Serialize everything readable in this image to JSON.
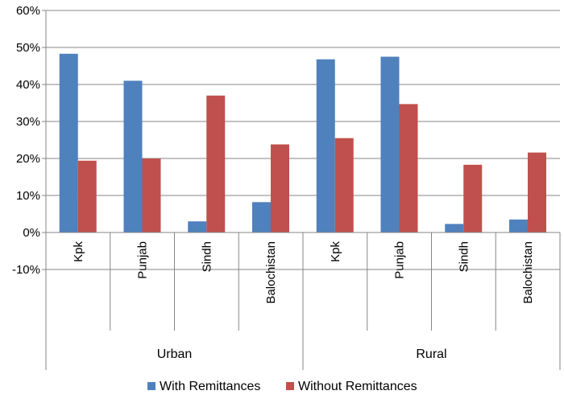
{
  "chart_data": {
    "type": "bar",
    "y_ticks": [
      "60%",
      "50%",
      "40%",
      "30%",
      "20%",
      "10%",
      "0%",
      "-10%"
    ],
    "ylim": [
      -0.1,
      0.6
    ],
    "grid": true,
    "legend_position": "bottom",
    "groups": [
      {
        "name": "Urban",
        "categories": [
          "Kpk",
          "Punjab",
          "Sindh",
          "Balochistan"
        ]
      },
      {
        "name": "Rural",
        "categories": [
          "Kpk",
          "Punjab",
          "Sindh",
          "Balochistan"
        ]
      }
    ],
    "categories": [
      "Kpk",
      "Punjab",
      "Sindh",
      "Balochistan",
      "Kpk",
      "Punjab",
      "Sindh",
      "Balochistan"
    ],
    "series": [
      {
        "name": "With Remittances",
        "color": "#4F81BD",
        "values": [
          0.483,
          0.41,
          0.03,
          0.082,
          0.468,
          0.475,
          0.023,
          0.035
        ]
      },
      {
        "name": "Without Remittances",
        "color": "#C0504D",
        "values": [
          0.194,
          0.2,
          0.37,
          0.238,
          0.255,
          0.347,
          0.183,
          0.216
        ]
      }
    ]
  }
}
